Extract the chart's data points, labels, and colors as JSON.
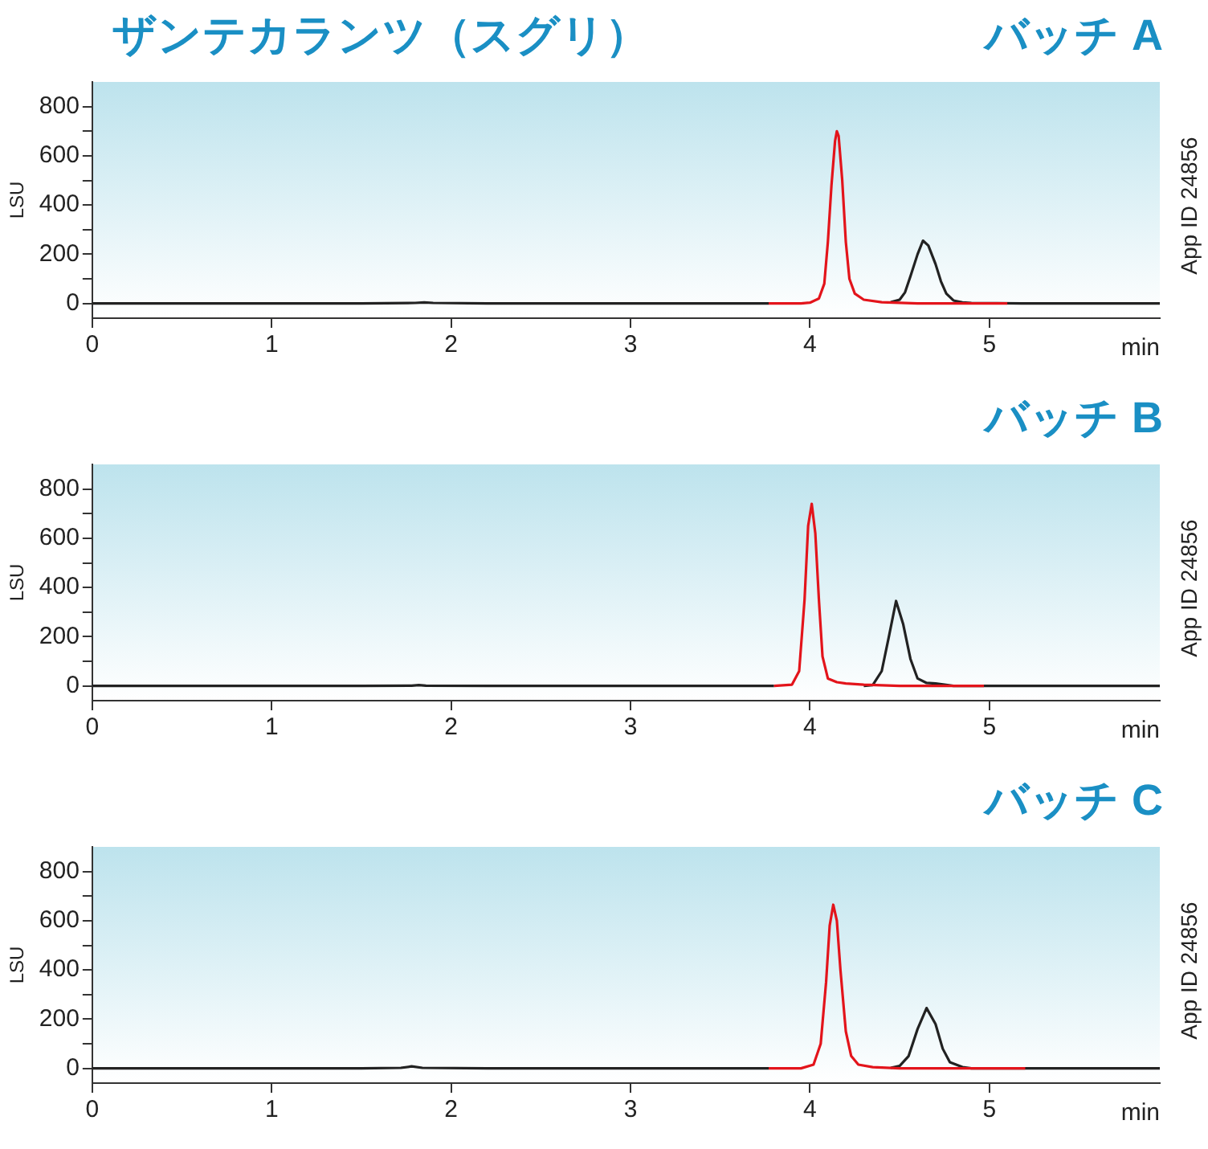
{
  "chart_data": [
    {
      "type": "line",
      "title": "ザンテカランツ（スグリ）",
      "subtitle": "バッチ A",
      "ylabel": "LSU",
      "xlabel": "min",
      "annotations": [
        "App ID 24856"
      ],
      "xlim": [
        0,
        5.95
      ],
      "ylim": [
        -60,
        900
      ],
      "xticks": [
        0,
        1,
        2,
        3,
        4,
        5
      ],
      "yticks": [
        0,
        200,
        400,
        600,
        800,
        {
          "value": 100,
          "label": null
        },
        {
          "value": 300,
          "label": null
        },
        {
          "value": 500,
          "label": null
        },
        {
          "value": 700,
          "label": null
        }
      ],
      "series": [
        {
          "color": "#222222",
          "x": [
            0,
            0.5,
            1,
            1.5,
            1.8,
            1.85,
            1.9,
            2.2,
            2.6,
            3,
            3.4,
            3.7,
            3.77,
            4.0,
            4.4,
            4.45,
            4.5,
            4.53,
            4.56,
            4.6,
            4.63,
            4.66,
            4.7,
            4.73,
            4.76,
            4.8,
            4.85,
            4.9,
            5.2,
            5.5,
            5.95
          ],
          "values": [
            0,
            0,
            0,
            0,
            2,
            4,
            2,
            0,
            0,
            0,
            0,
            0,
            0,
            null,
            null,
            5,
            15,
            45,
            110,
            200,
            255,
            235,
            160,
            90,
            40,
            12,
            4,
            2,
            0,
            0,
            0
          ]
        },
        {
          "color": "#e3141b",
          "x": [
            3.77,
            3.95,
            4.0,
            4.05,
            4.08,
            4.1,
            4.12,
            4.14,
            4.15,
            4.16,
            4.18,
            4.2,
            4.22,
            4.25,
            4.3,
            4.4,
            4.6,
            4.9,
            5.1
          ],
          "values": [
            0,
            0,
            3,
            20,
            80,
            250,
            480,
            660,
            700,
            680,
            500,
            250,
            100,
            40,
            15,
            5,
            0,
            0,
            0
          ]
        }
      ]
    },
    {
      "type": "line",
      "title": "バッチ B",
      "ylabel": "LSU",
      "xlabel": "min",
      "annotations": [
        "App ID 24856"
      ],
      "xlim": [
        0,
        5.95
      ],
      "ylim": [
        -60,
        900
      ],
      "xticks": [
        0,
        1,
        2,
        3,
        4,
        5
      ],
      "yticks": [
        0,
        200,
        400,
        600,
        800,
        {
          "value": 100,
          "label": null
        },
        {
          "value": 300,
          "label": null
        },
        {
          "value": 500,
          "label": null
        },
        {
          "value": 700,
          "label": null
        }
      ],
      "series": [
        {
          "color": "#222222",
          "x": [
            0,
            0.5,
            1,
            1.5,
            1.78,
            1.82,
            1.86,
            2.2,
            2.6,
            3,
            3.4,
            3.7,
            3.8,
            4.0,
            4.3,
            4.35,
            4.4,
            4.44,
            4.48,
            4.52,
            4.56,
            4.6,
            4.65,
            4.7,
            4.75,
            4.8,
            5.2,
            5.95
          ],
          "values": [
            0,
            0,
            0,
            0,
            1,
            3,
            1,
            0,
            0,
            0,
            0,
            0,
            0,
            null,
            0,
            3,
            60,
            200,
            345,
            250,
            110,
            30,
            12,
            10,
            5,
            0,
            0,
            0
          ]
        },
        {
          "color": "#e3141b",
          "x": [
            3.8,
            3.9,
            3.94,
            3.97,
            3.99,
            4.01,
            4.03,
            4.05,
            4.07,
            4.1,
            4.15,
            4.2,
            4.3,
            4.5,
            4.97
          ],
          "values": [
            0,
            5,
            60,
            350,
            650,
            740,
            620,
            350,
            120,
            30,
            15,
            10,
            5,
            0,
            0
          ]
        }
      ]
    },
    {
      "type": "line",
      "title": "バッチ C",
      "ylabel": "LSU",
      "xlabel": "min",
      "annotations": [
        "App ID 24856"
      ],
      "xlim": [
        0,
        5.95
      ],
      "ylim": [
        -60,
        900
      ],
      "xticks": [
        0,
        1,
        2,
        3,
        4,
        5
      ],
      "yticks": [
        0,
        200,
        400,
        600,
        800,
        {
          "value": 100,
          "label": null
        },
        {
          "value": 300,
          "label": null
        },
        {
          "value": 500,
          "label": null
        },
        {
          "value": 700,
          "label": null
        }
      ],
      "series": [
        {
          "color": "#222222",
          "x": [
            0,
            0.5,
            1,
            1.5,
            1.72,
            1.78,
            1.84,
            2.2,
            2.6,
            3,
            3.4,
            3.7,
            3.77,
            4.0,
            4.45,
            4.5,
            4.55,
            4.6,
            4.65,
            4.7,
            4.74,
            4.78,
            4.85,
            4.9,
            5.5,
            5.95
          ],
          "values": [
            0,
            0,
            0,
            0,
            2,
            8,
            2,
            0,
            0,
            0,
            0,
            0,
            0,
            null,
            2,
            10,
            50,
            160,
            245,
            180,
            80,
            25,
            5,
            0,
            0,
            0
          ]
        },
        {
          "color": "#e3141b",
          "x": [
            3.77,
            3.95,
            4.02,
            4.06,
            4.09,
            4.11,
            4.13,
            4.15,
            4.17,
            4.2,
            4.23,
            4.27,
            4.35,
            4.5,
            4.8,
            5.2
          ],
          "values": [
            0,
            0,
            15,
            100,
            350,
            580,
            665,
            600,
            400,
            150,
            50,
            15,
            5,
            0,
            0,
            0
          ]
        }
      ]
    }
  ]
}
